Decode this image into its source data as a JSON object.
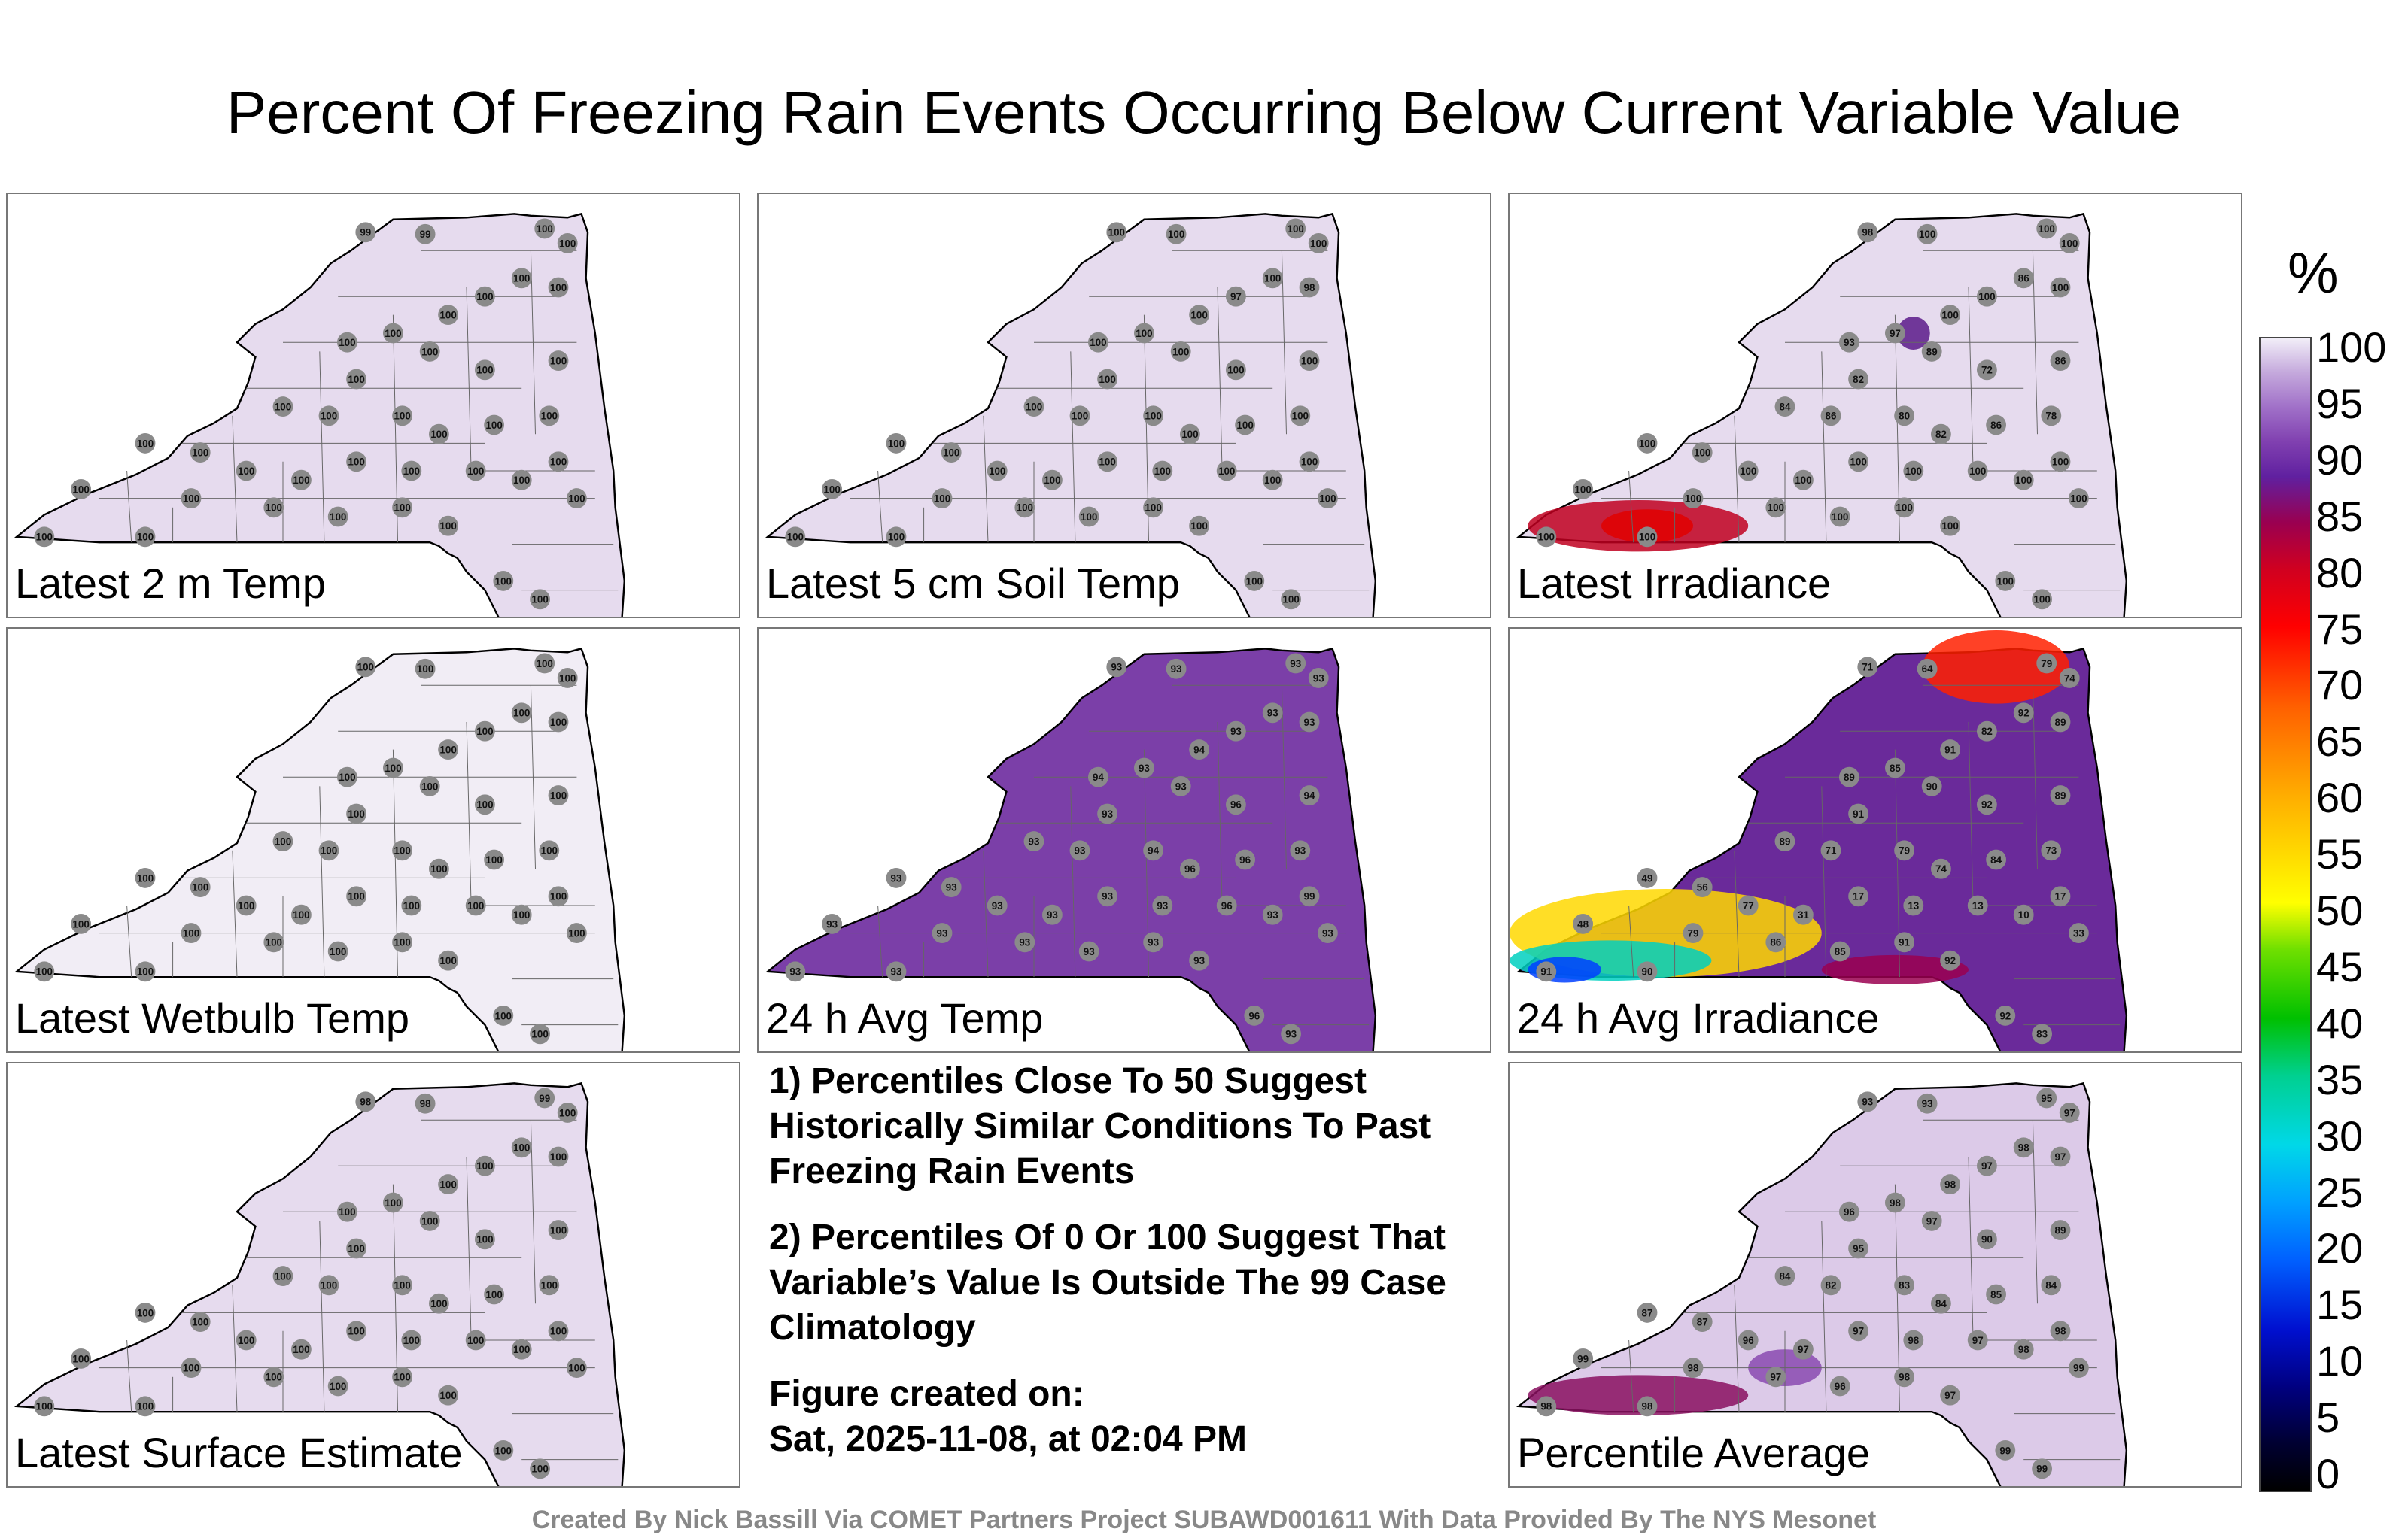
{
  "title": "Percent Of Freezing Rain Events Occurring Below Current Variable Value",
  "panels": [
    {
      "label": "Latest 2 m Temp",
      "fill": "#e6dbee",
      "values": [
        "99",
        "99",
        "100",
        "100",
        "100",
        "100",
        "100",
        "100",
        "100",
        "100",
        "100",
        "100",
        "100",
        "100",
        "100",
        "100",
        "100",
        "100",
        "100",
        "100",
        "100",
        "100",
        "100",
        "100",
        "100",
        "100",
        "100",
        "100",
        "100",
        "100",
        "100",
        "100",
        "100",
        "100",
        "100",
        "100",
        "100",
        "100",
        "100",
        "100"
      ]
    },
    {
      "label": "Latest 5 cm Soil Temp",
      "fill": "#e6dbee",
      "values": [
        "100",
        "100",
        "100",
        "100",
        "100",
        "97",
        "98",
        "100",
        "100",
        "100",
        "100",
        "100",
        "100",
        "100",
        "100",
        "100",
        "100",
        "100",
        "100",
        "100",
        "100",
        "100",
        "100",
        "100",
        "100",
        "100",
        "100",
        "100",
        "100",
        "100",
        "100",
        "100",
        "100",
        "100",
        "100",
        "100",
        "100",
        "100",
        "100",
        "100"
      ]
    },
    {
      "label": "Latest Irradiance",
      "fill": "#e6dbee",
      "values": [
        "98",
        "100",
        "100",
        "100",
        "86",
        "100",
        "100",
        "100",
        "97",
        "93",
        "89",
        "82",
        "72",
        "86",
        "84",
        "86",
        "80",
        "82",
        "86",
        "78",
        "100",
        "100",
        "100",
        "100",
        "100",
        "100",
        "100",
        "100",
        "100",
        "100",
        "100",
        "100",
        "100",
        "100",
        "100",
        "100",
        "100",
        "100",
        "100",
        "100"
      ]
    },
    {
      "label": "Latest Wetbulb Temp",
      "fill": "#f1edf5",
      "values": [
        "100",
        "100",
        "100",
        "100",
        "100",
        "100",
        "100",
        "100",
        "100",
        "100",
        "100",
        "100",
        "100",
        "100",
        "100",
        "100",
        "100",
        "100",
        "100",
        "100",
        "100",
        "100",
        "100",
        "100",
        "100",
        "100",
        "100",
        "100",
        "100",
        "100",
        "100",
        "100",
        "100",
        "100",
        "100",
        "100",
        "100",
        "100",
        "100",
        "100"
      ]
    },
    {
      "label": "24 h Avg Temp",
      "fill": "#7b3fa8",
      "values": [
        "93",
        "93",
        "93",
        "93",
        "93",
        "93",
        "93",
        "94",
        "93",
        "94",
        "93",
        "93",
        "96",
        "94",
        "93",
        "93",
        "94",
        "96",
        "96",
        "93",
        "93",
        "93",
        "93",
        "93",
        "93",
        "93",
        "96",
        "93",
        "99",
        "93",
        "93",
        "93",
        "93",
        "93",
        "93",
        "93",
        "93",
        "93",
        "96",
        "93"
      ]
    },
    {
      "label": "24 h Avg Irradiance",
      "fill": "#6a2a9a",
      "values": [
        "71",
        "64",
        "79",
        "74",
        "92",
        "82",
        "89",
        "91",
        "85",
        "89",
        "90",
        "91",
        "92",
        "89",
        "89",
        "71",
        "79",
        "74",
        "84",
        "73",
        "49",
        "56",
        "77",
        "31",
        "17",
        "13",
        "13",
        "10",
        "17",
        "33",
        "48",
        "79",
        "86",
        "85",
        "91",
        "92",
        "91",
        "90",
        "92",
        "83"
      ]
    },
    {
      "label": "Latest Surface Estimate",
      "fill": "#e6dbee",
      "values": [
        "98",
        "98",
        "99",
        "100",
        "100",
        "100",
        "100",
        "100",
        "100",
        "100",
        "100",
        "100",
        "100",
        "100",
        "100",
        "100",
        "100",
        "100",
        "100",
        "100",
        "100",
        "100",
        "100",
        "100",
        "100",
        "100",
        "100",
        "100",
        "100",
        "100",
        "100",
        "100",
        "100",
        "100",
        "100",
        "100",
        "100",
        "100",
        "100",
        "100"
      ]
    },
    {
      "label": "Percentile Average",
      "fill": "#dccae8",
      "values": [
        "93",
        "93",
        "95",
        "97",
        "98",
        "97",
        "97",
        "98",
        "98",
        "96",
        "97",
        "95",
        "90",
        "89",
        "84",
        "82",
        "83",
        "84",
        "85",
        "84",
        "87",
        "87",
        "96",
        "97",
        "97",
        "98",
        "97",
        "98",
        "98",
        "99",
        "99",
        "98",
        "97",
        "96",
        "98",
        "97",
        "98",
        "98",
        "99",
        "99"
      ]
    }
  ],
  "notes": {
    "note1": "1) Percentiles Close To 50 Suggest Historically Similar Conditions To Past Freezing Rain Events",
    "note2": "2) Percentiles Of 0 Or 100 Suggest That Variable’s Value Is Outside The 99 Case Climatology",
    "created_label": "Figure created on:",
    "created_date": "Sat, 2025-11-08, at 02:04 PM"
  },
  "colorbar": {
    "unit": "%",
    "ticks": [
      "100",
      "95",
      "90",
      "85",
      "80",
      "75",
      "70",
      "65",
      "60",
      "55",
      "50",
      "45",
      "40",
      "35",
      "30",
      "25",
      "20",
      "15",
      "10",
      "5",
      "0"
    ]
  },
  "footer": "Created By Nick Bassill Via COMET Partners Project SUBAWD001611 With Data Provided By The NYS Mesonet",
  "colors": {
    "station": "#8a8a8a",
    "outline": "#000000",
    "county": "#666666"
  }
}
